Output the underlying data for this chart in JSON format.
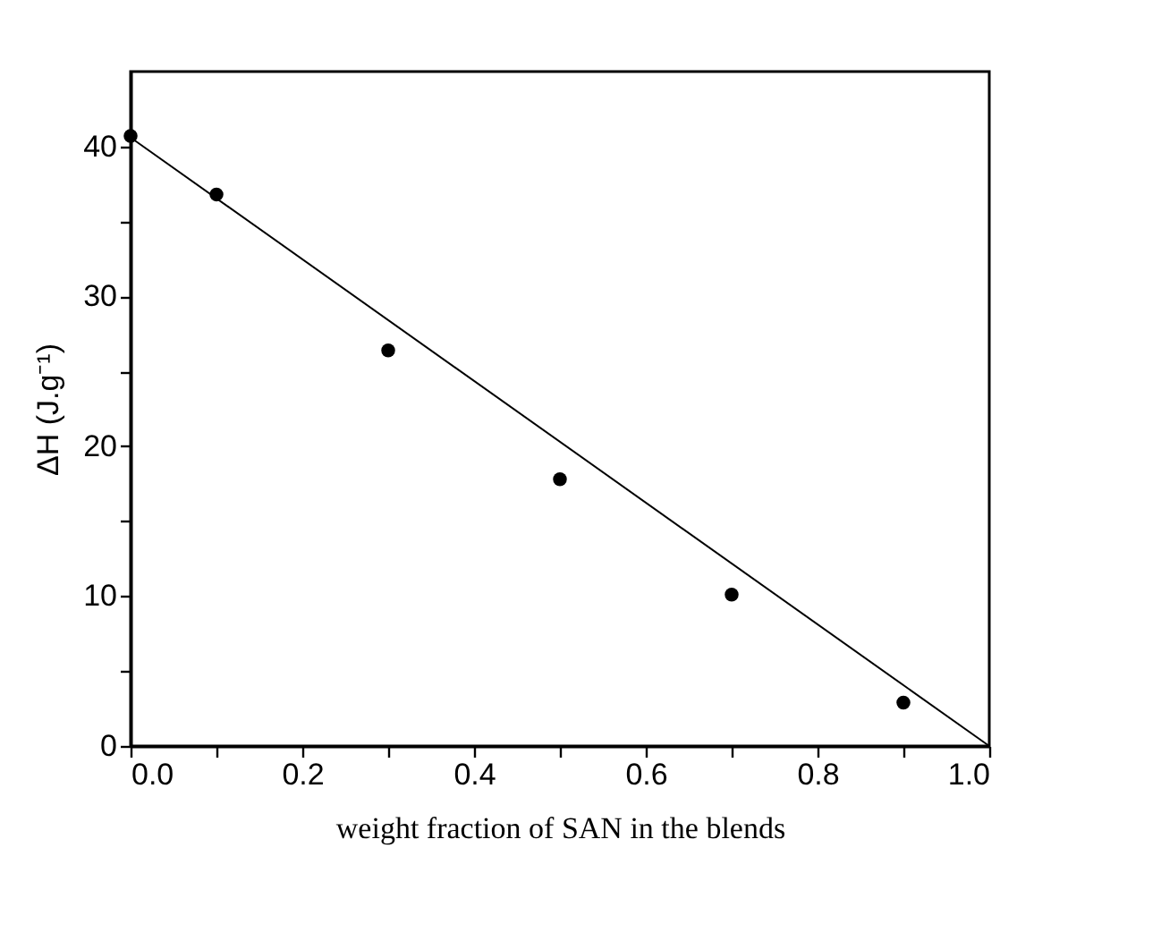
{
  "chart_data": {
    "type": "scatter",
    "xlabel": "weight fraction of SAN in the blends",
    "ylabel": "ΔH (J.g⁻¹)",
    "x": [
      0,
      0.1,
      0.3,
      0.5,
      0.7,
      0.9
    ],
    "series": [
      {
        "color": "#000000",
        "values": [
          40.7,
          36.8,
          26.4,
          17.8,
          10.1,
          2.9
        ]
      },
      {
        "type": "line",
        "color": "#000000",
        "marker": "none",
        "x": [
          0,
          1
        ],
        "values": [
          40.6,
          0
        ]
      }
    ],
    "marker": "circle",
    "xlim": [
      0,
      1
    ],
    "ylim": [
      0,
      45
    ],
    "xticks": [
      "0.0",
      {
        "value": 0.1,
        "label": null
      },
      {
        "value": 0.2,
        "label": "0.2"
      },
      {
        "value": 0.3,
        "label": null
      },
      {
        "value": 0.4,
        "label": "0.4"
      },
      {
        "value": 0.5,
        "label": null
      },
      {
        "value": 0.6,
        "label": "0.6"
      },
      {
        "value": 0.7,
        "label": null
      },
      {
        "value": 0.8,
        "label": "0.8"
      },
      {
        "value": 0.9,
        "label": null
      },
      {
        "value": 1,
        "label": "1.0"
      }
    ],
    "yticks": [
      0,
      {
        "value": 5,
        "label": null
      },
      10,
      {
        "value": 15,
        "label": null
      },
      20,
      {
        "value": 25,
        "label": null
      },
      30,
      {
        "value": 35,
        "label": null
      },
      40
    ],
    "grid": false
  }
}
